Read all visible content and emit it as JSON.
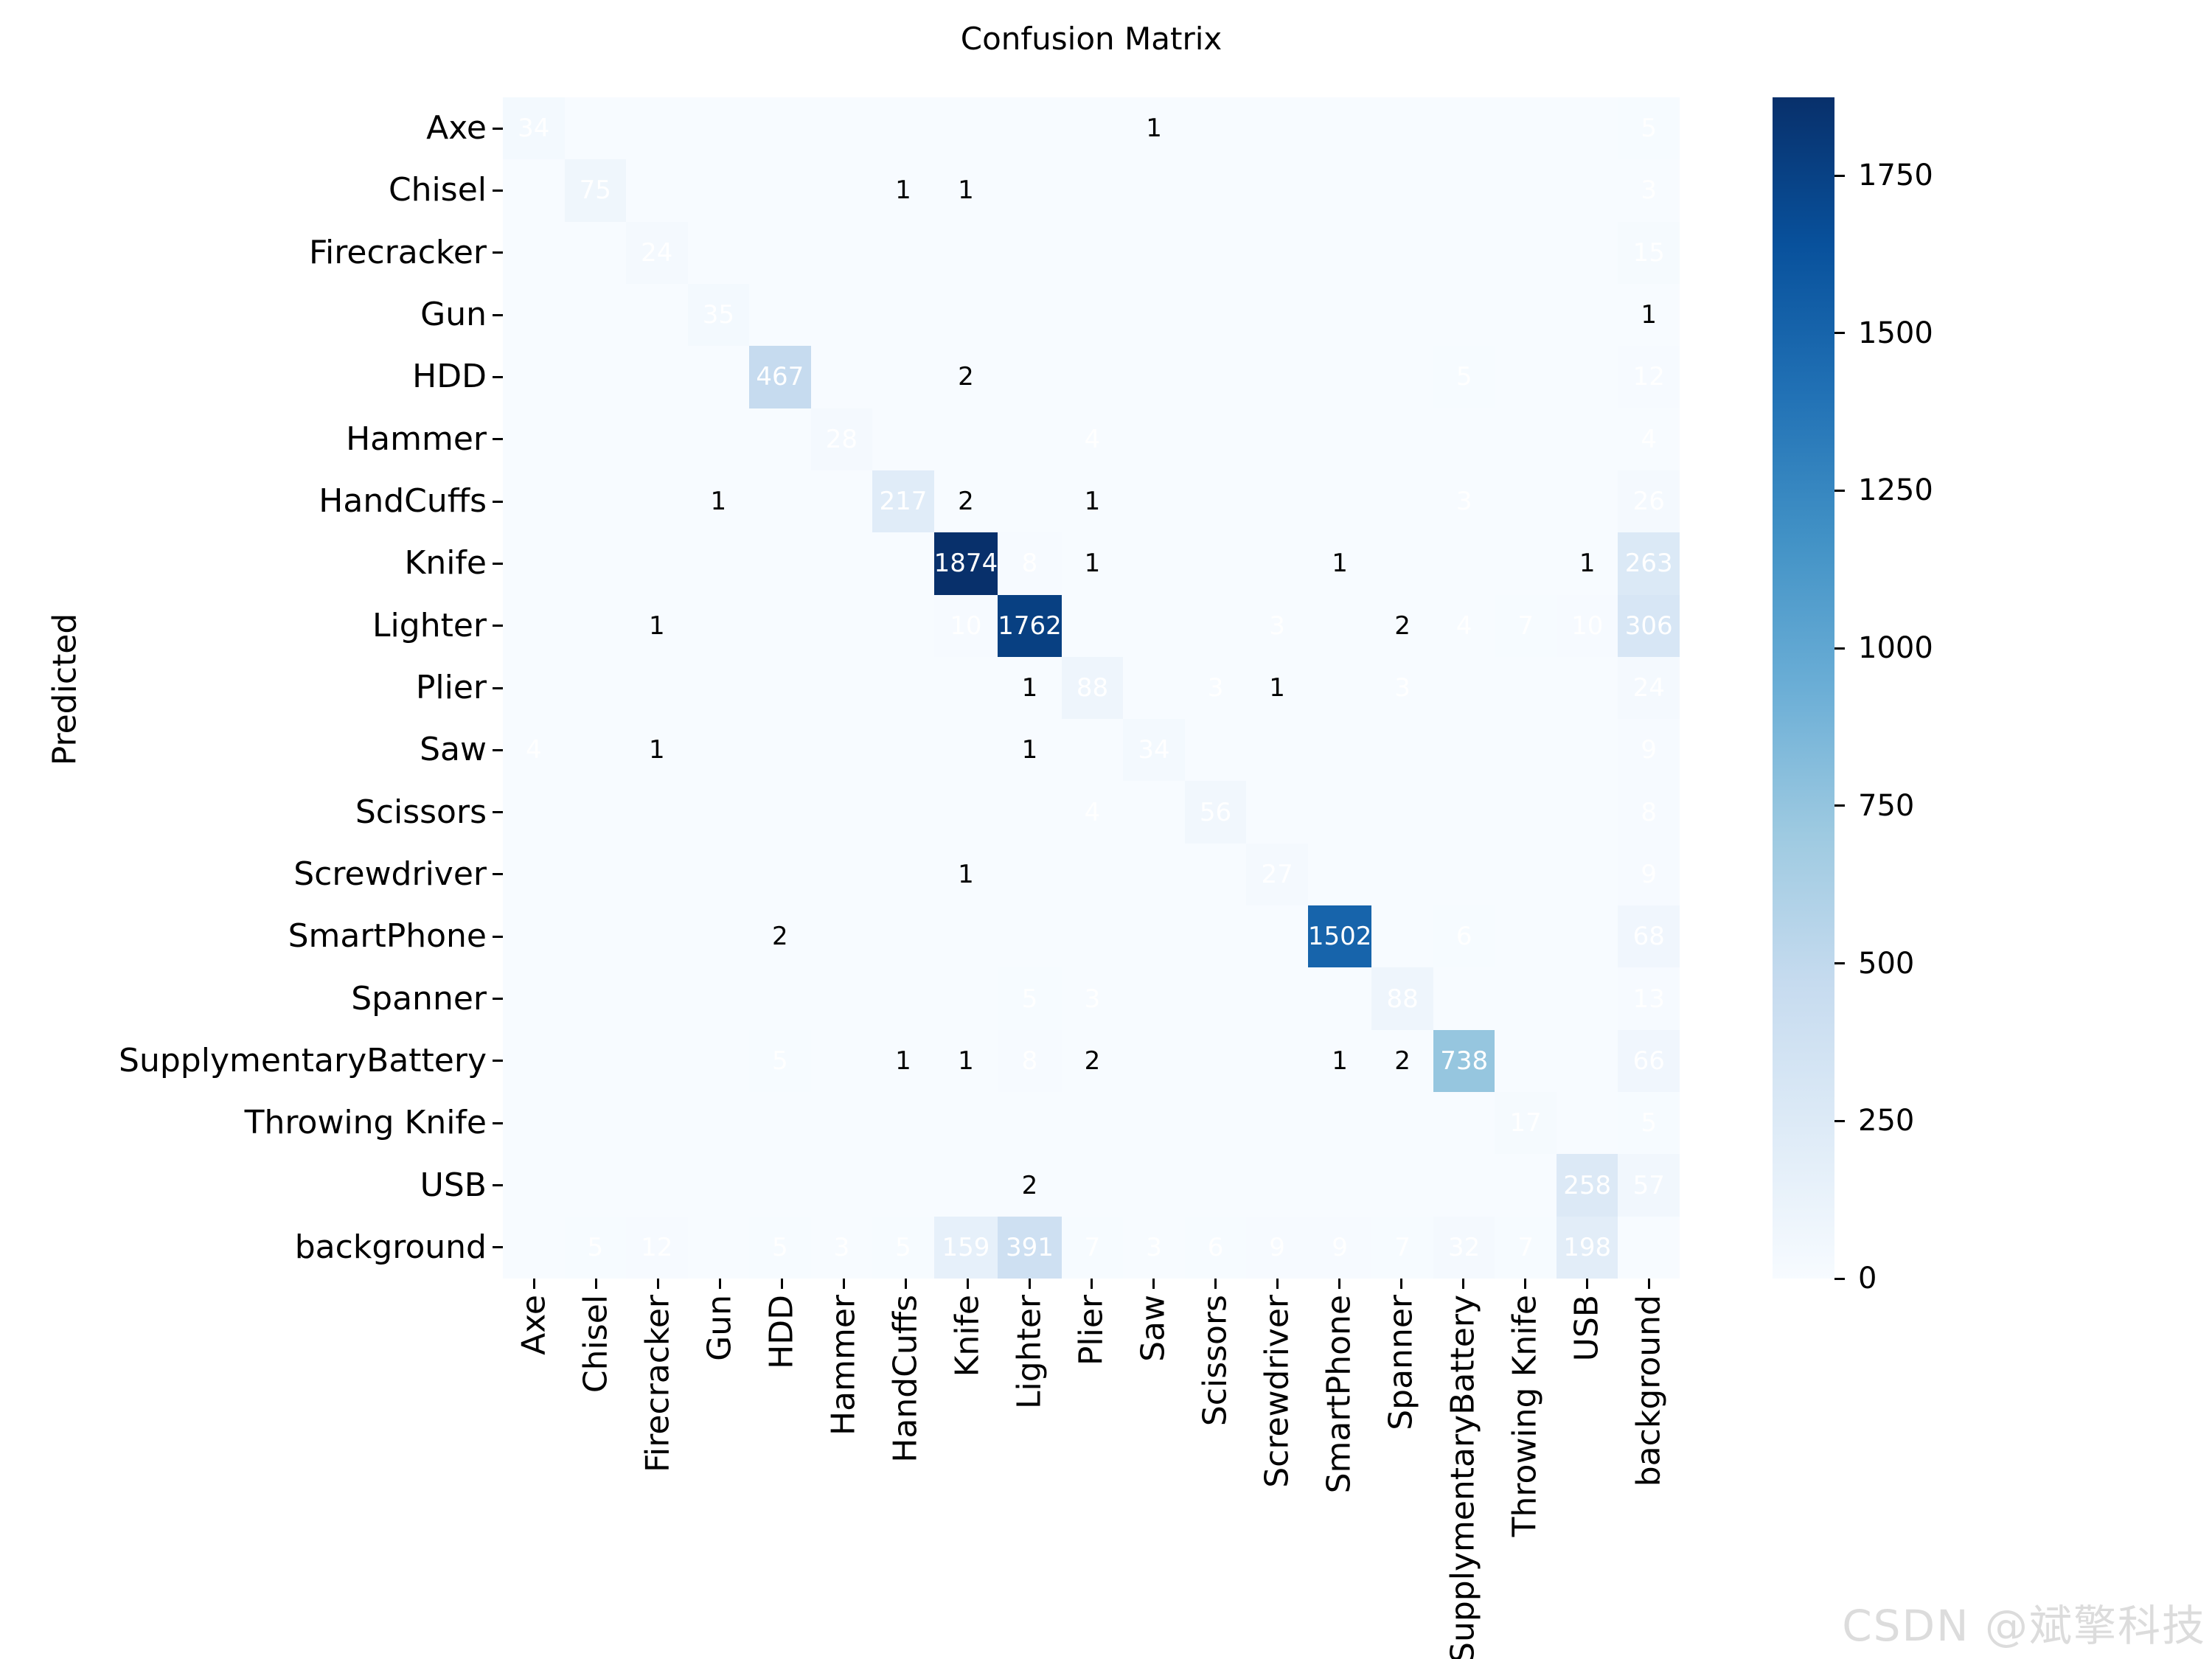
{
  "header": {
    "title": "Confusion Matrix"
  },
  "axes": {
    "ylabel": "Predicted",
    "xlabel": ""
  },
  "watermark": {
    "text": "CSDN @斌擎科技",
    "color": "#dcdcdc"
  },
  "colors": {
    "background": "#ffffff",
    "text": "#000000",
    "annotation_light": "#ffffff",
    "annotation_dark": "#000000",
    "colormap_name": "Blues",
    "colormap_anchors": [
      {
        "t": 0.0,
        "rgb": [
          247,
          251,
          255
        ]
      },
      {
        "t": 0.125,
        "rgb": [
          222,
          235,
          247
        ]
      },
      {
        "t": 0.25,
        "rgb": [
          198,
          219,
          239
        ]
      },
      {
        "t": 0.375,
        "rgb": [
          158,
          202,
          225
        ]
      },
      {
        "t": 0.5,
        "rgb": [
          107,
          174,
          214
        ]
      },
      {
        "t": 0.625,
        "rgb": [
          66,
          146,
          198
        ]
      },
      {
        "t": 0.75,
        "rgb": [
          33,
          113,
          181
        ]
      },
      {
        "t": 0.875,
        "rgb": [
          8,
          81,
          156
        ]
      },
      {
        "t": 1.0,
        "rgb": [
          8,
          48,
          107
        ]
      }
    ]
  },
  "chart_data": {
    "type": "heatmap",
    "title": "Confusion Matrix",
    "ylabel": "Predicted",
    "xlabel": "",
    "grid": false,
    "legend_position": "right-colorbar",
    "vmin": 0,
    "vmax": 1874,
    "colorbar_ticks": [
      0,
      250,
      500,
      750,
      1000,
      1250,
      1500,
      1750
    ],
    "categories": [
      "Axe",
      "Chisel",
      "Firecracker",
      "Gun",
      "HDD",
      "Hammer",
      "HandCuffs",
      "Knife",
      "Lighter",
      "Plier",
      "Saw",
      "Scissors",
      "Screwdriver",
      "SmartPhone",
      "Spanner",
      "SupplymentaryBattery",
      "Throwing Knife",
      "USB",
      "background"
    ],
    "rows_are": "Predicted",
    "zero_cells_unlabeled": true,
    "matrix": [
      [
        34,
        0,
        0,
        0,
        0,
        0,
        0,
        0,
        0,
        0,
        1,
        0,
        0,
        0,
        0,
        0,
        0,
        0,
        5
      ],
      [
        0,
        75,
        0,
        0,
        0,
        0,
        1,
        1,
        0,
        0,
        0,
        0,
        0,
        0,
        0,
        0,
        0,
        0,
        3
      ],
      [
        0,
        0,
        24,
        0,
        0,
        0,
        0,
        0,
        0,
        0,
        0,
        0,
        0,
        0,
        0,
        0,
        0,
        0,
        15
      ],
      [
        0,
        0,
        0,
        35,
        0,
        0,
        0,
        0,
        0,
        0,
        0,
        0,
        0,
        0,
        0,
        0,
        0,
        0,
        1
      ],
      [
        0,
        0,
        0,
        0,
        467,
        0,
        0,
        2,
        0,
        0,
        0,
        0,
        0,
        0,
        0,
        5,
        0,
        0,
        12
      ],
      [
        0,
        0,
        0,
        0,
        0,
        28,
        0,
        0,
        0,
        4,
        0,
        0,
        0,
        0,
        0,
        0,
        0,
        0,
        4
      ],
      [
        0,
        0,
        0,
        1,
        0,
        0,
        217,
        2,
        0,
        1,
        0,
        0,
        0,
        0,
        0,
        3,
        0,
        0,
        26
      ],
      [
        0,
        0,
        0,
        0,
        0,
        0,
        0,
        1874,
        8,
        1,
        0,
        0,
        0,
        1,
        0,
        0,
        0,
        1,
        263
      ],
      [
        0,
        0,
        1,
        0,
        0,
        0,
        0,
        10,
        1762,
        0,
        0,
        0,
        3,
        0,
        2,
        4,
        7,
        10,
        306
      ],
      [
        0,
        0,
        0,
        0,
        0,
        0,
        0,
        0,
        1,
        88,
        0,
        3,
        1,
        0,
        3,
        0,
        0,
        0,
        24
      ],
      [
        4,
        0,
        1,
        0,
        0,
        0,
        0,
        0,
        1,
        0,
        34,
        0,
        0,
        0,
        0,
        0,
        0,
        0,
        9
      ],
      [
        0,
        0,
        0,
        0,
        0,
        0,
        0,
        0,
        0,
        4,
        0,
        56,
        0,
        0,
        0,
        0,
        0,
        0,
        8
      ],
      [
        0,
        0,
        0,
        0,
        0,
        0,
        0,
        1,
        0,
        0,
        0,
        0,
        27,
        0,
        0,
        0,
        0,
        0,
        9
      ],
      [
        0,
        0,
        0,
        0,
        2,
        0,
        0,
        0,
        0,
        0,
        0,
        0,
        0,
        1502,
        0,
        6,
        0,
        0,
        68
      ],
      [
        0,
        0,
        0,
        0,
        0,
        0,
        0,
        0,
        5,
        3,
        0,
        0,
        0,
        0,
        88,
        0,
        0,
        0,
        13
      ],
      [
        0,
        0,
        0,
        0,
        5,
        0,
        1,
        1,
        8,
        2,
        0,
        0,
        0,
        1,
        2,
        738,
        0,
        0,
        66
      ],
      [
        0,
        0,
        0,
        0,
        0,
        0,
        0,
        0,
        0,
        0,
        0,
        0,
        0,
        0,
        0,
        0,
        17,
        0,
        5
      ],
      [
        0,
        0,
        0,
        0,
        0,
        0,
        0,
        0,
        2,
        0,
        0,
        0,
        0,
        0,
        0,
        0,
        0,
        258,
        57
      ],
      [
        0,
        5,
        12,
        0,
        5,
        3,
        5,
        159,
        391,
        7,
        3,
        6,
        9,
        9,
        7,
        32,
        7,
        198,
        0
      ]
    ]
  }
}
